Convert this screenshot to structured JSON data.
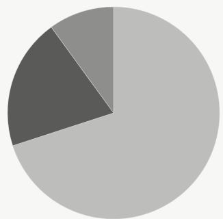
{
  "chart_data": {
    "type": "pie",
    "title": "",
    "start_angle_deg": 0,
    "direction": "clockwise",
    "slices": [
      {
        "value": 70,
        "color": "#bdbdbb"
      },
      {
        "value": 20,
        "color": "#5a5a58"
      },
      {
        "value": 10,
        "color": "#8e8e8c"
      }
    ]
  }
}
